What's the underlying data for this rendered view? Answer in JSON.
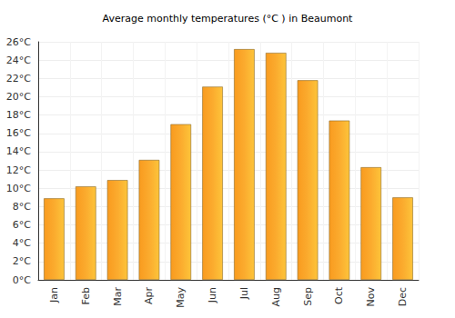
{
  "chart_data": {
    "type": "bar",
    "title": "Average monthly temperatures (°C ) in Beaumont",
    "categories": [
      "Jan",
      "Feb",
      "Mar",
      "Apr",
      "May",
      "Jun",
      "Jul",
      "Aug",
      "Sep",
      "Oct",
      "Nov",
      "Dec"
    ],
    "values": [
      8.9,
      10.2,
      10.9,
      13.1,
      17.0,
      21.1,
      25.2,
      24.8,
      21.8,
      17.4,
      12.3,
      9.0
    ],
    "color": "#fbab2e",
    "ylim": [
      0,
      26
    ],
    "yticks": [
      {
        "value": 0,
        "label": "0°C"
      },
      {
        "value": 2,
        "label": "2°C"
      },
      {
        "value": 4,
        "label": "4°C"
      },
      {
        "value": 6,
        "label": "6°C"
      },
      {
        "value": 8,
        "label": "8°C"
      },
      {
        "value": 10,
        "label": "10°C"
      },
      {
        "value": 12,
        "label": "12°C"
      },
      {
        "value": 14,
        "label": "14°C"
      },
      {
        "value": 16,
        "label": "16°C"
      },
      {
        "value": 18,
        "label": "18°C"
      },
      {
        "value": 20,
        "label": "20°C"
      },
      {
        "value": 22,
        "label": "22°C"
      },
      {
        "value": 24,
        "label": "24°C"
      },
      {
        "value": 26,
        "label": "26°C"
      }
    ],
    "grid": true
  }
}
